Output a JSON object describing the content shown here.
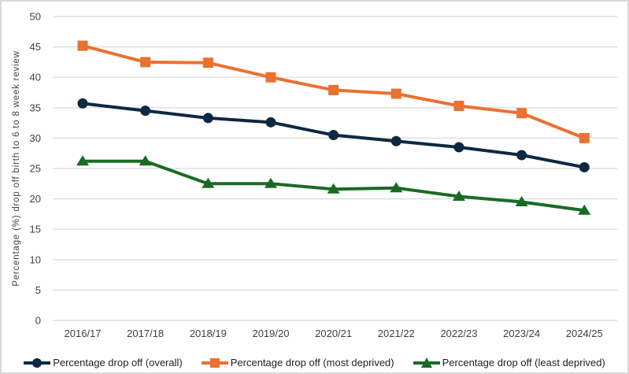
{
  "chart_data": {
    "type": "line",
    "title": "",
    "xlabel": "",
    "ylabel": "Percentage (%) drop off birth to 6 to 8 week review",
    "ylim": [
      0,
      50
    ],
    "ytick_step": 5,
    "grid": true,
    "legend_position": "bottom",
    "categories": [
      "2016/17",
      "2017/18",
      "2018/19",
      "2019/20",
      "2020/21",
      "2021/22",
      "2022/23",
      "2023/24",
      "2024/25"
    ],
    "series": [
      {
        "name": "Percentage drop off (overall)",
        "marker": "circle",
        "color": "#0E2841",
        "values": [
          35.7,
          34.5,
          33.3,
          32.6,
          30.5,
          29.5,
          28.5,
          27.2,
          25.2
        ]
      },
      {
        "name": "Percentage drop off (most deprived)",
        "marker": "square",
        "color": "#E97132",
        "values": [
          45.2,
          42.5,
          42.4,
          40.0,
          37.9,
          37.3,
          35.3,
          34.1,
          30.0
        ]
      },
      {
        "name": "Percentage drop off (least deprived)",
        "marker": "triangle",
        "color": "#196B24",
        "values": [
          26.2,
          26.2,
          22.5,
          22.5,
          21.6,
          21.8,
          20.4,
          19.5,
          18.1
        ]
      }
    ]
  },
  "colors": {
    "gridline": "#D9D9D9",
    "axis_text": "#3F3F3F",
    "background": "#FFFFFF",
    "border": "#D8D8D8"
  }
}
